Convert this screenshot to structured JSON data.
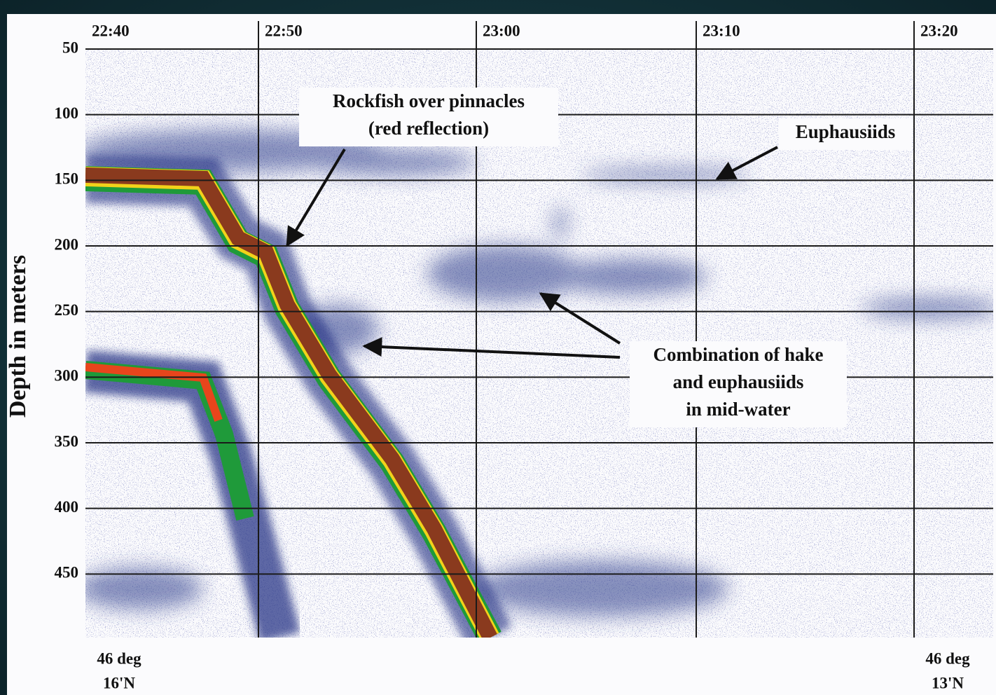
{
  "chart_data": {
    "type": "echogram",
    "y_label": "Depth in meters",
    "ylim": [
      50,
      500
    ],
    "y_inverted": true,
    "yticks": [
      50,
      100,
      150,
      200,
      250,
      300,
      350,
      400,
      450
    ],
    "xticks": [
      "22:40",
      "22:50",
      "23:00",
      "23:10",
      "23:20"
    ],
    "grid": true,
    "annotations": [
      {
        "lines": [
          "Rockfish over pinnacles",
          "(red reflection)"
        ]
      },
      {
        "lines": [
          "Euphausiids"
        ]
      },
      {
        "lines": [
          "Combination of hake",
          "and euphausiids",
          "in mid-water"
        ]
      }
    ],
    "position_labels": [
      {
        "lines": [
          "46 deg",
          "16'N"
        ]
      },
      {
        "lines": [
          "46 deg",
          "13'N"
        ]
      }
    ]
  }
}
